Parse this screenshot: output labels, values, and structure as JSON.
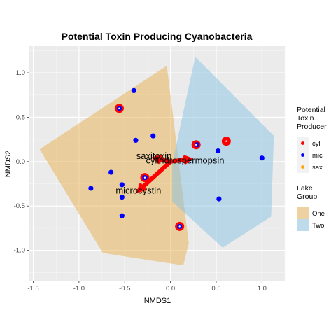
{
  "chart_data": {
    "type": "scatter",
    "title": "Potential Toxin Producing Cyanobacteria",
    "xlabel": "NMDS1",
    "ylabel": "NMDS2",
    "xlim": [
      -1.55,
      1.25
    ],
    "ylim": [
      -1.35,
      1.3
    ],
    "x_ticks": [
      -1.5,
      -1.0,
      -0.5,
      0.0,
      0.5,
      1.0
    ],
    "x_tick_labels": [
      "-1.5",
      "-1.0",
      "-0.5",
      "0.0",
      "0.5",
      "1.0"
    ],
    "y_ticks": [
      -1.0,
      -0.5,
      0.0,
      0.5,
      1.0
    ],
    "y_tick_labels": [
      "-1.0",
      "-0.5",
      "0.0",
      "0.5",
      "1.0"
    ],
    "grid": true,
    "hulls": [
      {
        "group": "One",
        "color": "#e8b04e",
        "points": [
          [
            -1.43,
            0.14
          ],
          [
            -0.04,
            1.08
          ],
          [
            0.2,
            -0.92
          ],
          [
            0.14,
            -1.17
          ],
          [
            -0.74,
            -1.03
          ]
        ]
      },
      {
        "group": "Two",
        "color": "#88c4e3",
        "points": [
          [
            0.27,
            1.18
          ],
          [
            1.13,
            0.29
          ],
          [
            1.1,
            -0.62
          ],
          [
            0.57,
            -0.97
          ],
          [
            0.02,
            -0.45
          ],
          [
            0.02,
            -0.02
          ]
        ]
      }
    ],
    "series": [
      {
        "name": "cyl",
        "color": "#ff0000",
        "x": [
          -0.56,
          0.1,
          0.28,
          0.61,
          -0.28
        ],
        "y": [
          0.6,
          -0.73,
          0.19,
          0.23,
          -0.18
        ]
      },
      {
        "name": "mic",
        "color": "#0000ff",
        "x": [
          -0.4,
          -0.38,
          -0.19,
          -0.87,
          -0.65,
          -0.53,
          -0.53,
          -0.53,
          0.52,
          0.53,
          1.0,
          0.29,
          0.1,
          -0.56,
          -0.28
        ],
        "y": [
          0.8,
          0.24,
          0.29,
          -0.3,
          -0.12,
          -0.26,
          -0.4,
          -0.61,
          0.12,
          -0.42,
          0.04,
          0.19,
          -0.73,
          0.6,
          -0.18
        ]
      },
      {
        "name": "sax",
        "color": "#ffa500",
        "x": [],
        "y": []
      }
    ],
    "vectors": [
      {
        "label": "saxitoxin",
        "x": -0.18,
        "y": 0.04,
        "label_x": -0.18,
        "label_y": 0.06
      },
      {
        "label": "cylindrospermopsin",
        "x": 0.22,
        "y": 0.03,
        "label_x": 0.16,
        "label_y": 0.01
      },
      {
        "label": "microcystin",
        "x": -0.35,
        "y": -0.33,
        "label_x": -0.35,
        "label_y": -0.33
      }
    ],
    "legends": [
      {
        "title_lines": [
          "Potential",
          "Toxin",
          "Producer"
        ],
        "items": [
          {
            "label": "cyl",
            "color": "#ff0000"
          },
          {
            "label": "mic",
            "color": "#0000ff"
          },
          {
            "label": "sax",
            "color": "#ffa500"
          }
        ]
      },
      {
        "title_lines": [
          "Lake",
          "Group"
        ],
        "items": [
          {
            "label": "One",
            "color": "#e8b04e"
          },
          {
            "label": "Two",
            "color": "#88c4e3"
          }
        ]
      }
    ],
    "legend_position": "right"
  }
}
